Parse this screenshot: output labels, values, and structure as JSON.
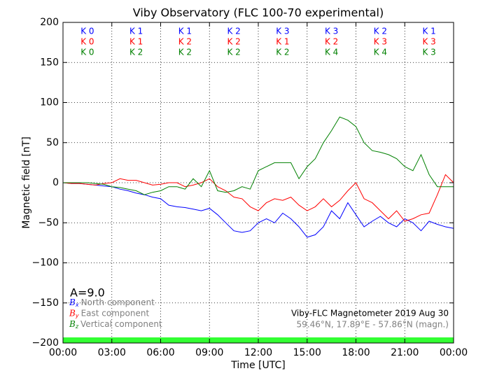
{
  "chart_data": {
    "type": "line",
    "title": "Viby Observatory (FLC 100-70 experimental)",
    "x_label": "Time [UTC]",
    "y_label": "Magnetic field [nT]",
    "xlim": [
      0,
      24
    ],
    "ylim": [
      -200,
      200
    ],
    "xticks": [
      {
        "value": 0,
        "label": "00:00"
      },
      {
        "value": 3,
        "label": "03:00"
      },
      {
        "value": 6,
        "label": "06:00"
      },
      {
        "value": 9,
        "label": "09:00"
      },
      {
        "value": 12,
        "label": "12:00"
      },
      {
        "value": 15,
        "label": "15:00"
      },
      {
        "value": 18,
        "label": "18:00"
      },
      {
        "value": 21,
        "label": "21:00"
      },
      {
        "value": 24,
        "label": "00:00"
      }
    ],
    "yticks": [
      {
        "value": -200,
        "label": "−200"
      },
      {
        "value": -150,
        "label": "−150"
      },
      {
        "value": -100,
        "label": "−100"
      },
      {
        "value": -50,
        "label": "−50"
      },
      0,
      50,
      100,
      150,
      200
    ],
    "grid": true,
    "x": [
      0,
      0.5,
      1,
      1.5,
      2,
      2.5,
      3,
      3.5,
      4,
      4.5,
      5,
      5.5,
      6,
      6.5,
      7,
      7.5,
      8,
      8.5,
      9,
      9.5,
      10,
      10.5,
      11,
      11.5,
      12,
      12.5,
      13,
      13.5,
      14,
      14.5,
      15,
      15.5,
      16,
      16.5,
      17,
      17.5,
      18,
      18.5,
      19,
      19.5,
      20,
      20.5,
      21,
      21.5,
      22,
      22.5,
      23,
      23.5,
      24
    ],
    "series": [
      {
        "name": "North component",
        "symbol": "B",
        "subscript": "x",
        "color": "#0000ff",
        "values": [
          0,
          -1,
          -1,
          -2,
          -3,
          -4,
          -5,
          -8,
          -10,
          -13,
          -15,
          -18,
          -20,
          -28,
          -30,
          -31,
          -33,
          -35,
          -32,
          -40,
          -50,
          -60,
          -62,
          -60,
          -50,
          -45,
          -50,
          -38,
          -45,
          -55,
          -68,
          -65,
          -55,
          -35,
          -45,
          -25,
          -40,
          -55,
          -48,
          -42,
          -50,
          -55,
          -45,
          -50,
          -60,
          -48,
          -52,
          -55,
          -57
        ]
      },
      {
        "name": "East component",
        "symbol": "B",
        "subscript": "y",
        "color": "#ff0000",
        "values": [
          0,
          -1,
          -1,
          -2,
          -3,
          -1,
          0,
          5,
          3,
          3,
          0,
          -3,
          -2,
          0,
          0,
          -5,
          -3,
          0,
          5,
          -5,
          -10,
          -18,
          -20,
          -30,
          -35,
          -25,
          -20,
          -22,
          -18,
          -28,
          -35,
          -30,
          -20,
          -30,
          -22,
          -10,
          0,
          -20,
          -25,
          -35,
          -45,
          -35,
          -48,
          -45,
          -40,
          -38,
          -15,
          10,
          0
        ]
      },
      {
        "name": "Vertical component",
        "symbol": "B",
        "subscript": "z",
        "color": "#008000",
        "values": [
          0,
          0,
          0,
          0,
          -1,
          -2,
          -5,
          -6,
          -8,
          -10,
          -15,
          -12,
          -10,
          -5,
          -5,
          -8,
          5,
          -5,
          15,
          -10,
          -12,
          -10,
          -5,
          -8,
          15,
          20,
          25,
          25,
          25,
          5,
          20,
          30,
          50,
          65,
          82,
          78,
          70,
          50,
          40,
          38,
          35,
          30,
          20,
          15,
          35,
          10,
          -5,
          -5,
          -5
        ]
      }
    ],
    "k_rows": [
      {
        "color": "#0000ff",
        "labels": [
          "K 0",
          "K 1",
          "K 1",
          "K 2",
          "K 3",
          "K 3",
          "K 2",
          "K 1"
        ]
      },
      {
        "color": "#ff0000",
        "labels": [
          "K 0",
          "K 1",
          "K 2",
          "K 2",
          "K 1",
          "K 2",
          "K 3",
          "K 3"
        ]
      },
      {
        "color": "#008000",
        "labels": [
          "K 0",
          "K 2",
          "K 2",
          "K 2",
          "K 2",
          "K 4",
          "K 4",
          "K 3"
        ]
      }
    ],
    "activity_label": "A=9.0",
    "station_label": "Viby-FLC Magnetometer 2019 Aug 30",
    "location_label": "59.46°N, 17.89°E - 57.86°N (magn.)",
    "status_band": {
      "color": "#33ff33",
      "range": [
        -200,
        -193
      ]
    }
  }
}
